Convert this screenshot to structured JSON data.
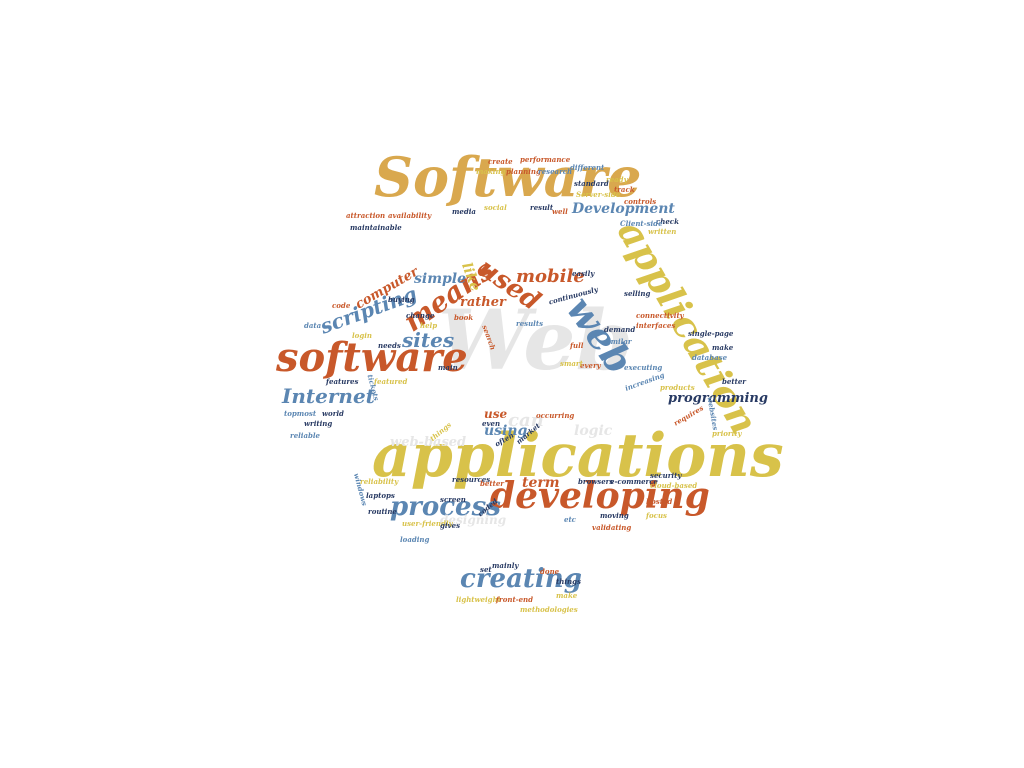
{
  "colors": {
    "orange": "#c8582a",
    "gold": "#d9a84e",
    "yellow": "#d8c24a",
    "blue": "#5b86b2",
    "navy": "#283a63",
    "faint": "#e6e6e6"
  },
  "words": [
    {
      "text": "Web",
      "color": "faint"
    },
    {
      "text": "applications",
      "color": "yellow"
    },
    {
      "text": "Software",
      "color": "gold"
    },
    {
      "text": "software",
      "color": "orange"
    },
    {
      "text": "developing",
      "color": "orange"
    },
    {
      "text": "application",
      "color": "yellow"
    },
    {
      "text": "web",
      "color": "blue"
    },
    {
      "text": "creating",
      "color": "blue"
    },
    {
      "text": "process",
      "color": "blue"
    },
    {
      "text": "used",
      "color": "orange"
    },
    {
      "text": "means",
      "color": "orange"
    },
    {
      "text": "Internet",
      "color": "blue"
    },
    {
      "text": "sites",
      "color": "blue"
    },
    {
      "text": "scripting",
      "color": "blue"
    },
    {
      "text": "mobile",
      "color": "orange"
    },
    {
      "text": "programming",
      "color": "navy"
    },
    {
      "text": "Development",
      "color": "blue"
    },
    {
      "text": "computer",
      "color": "orange"
    },
    {
      "text": "simple",
      "color": "blue"
    },
    {
      "text": "like",
      "color": "yellow"
    },
    {
      "text": "rather",
      "color": "orange"
    },
    {
      "text": "term",
      "color": "orange"
    },
    {
      "text": "using",
      "color": "blue"
    },
    {
      "text": "use",
      "color": "orange"
    },
    {
      "text": "can",
      "color": "faint"
    },
    {
      "text": "logic",
      "color": "faint"
    },
    {
      "text": "web-based",
      "color": "faint"
    },
    {
      "text": "designing",
      "color": "faint"
    },
    {
      "text": "create",
      "color": "orange"
    },
    {
      "text": "performance",
      "color": "orange"
    },
    {
      "text": "making",
      "color": "yellow"
    },
    {
      "text": "planning",
      "color": "orange"
    },
    {
      "text": "research",
      "color": "blue"
    },
    {
      "text": "different",
      "color": "blue"
    },
    {
      "text": "ready",
      "color": "yellow"
    },
    {
      "text": "standard",
      "color": "navy"
    },
    {
      "text": "track",
      "color": "orange"
    },
    {
      "text": "Server-side",
      "color": "yellow"
    },
    {
      "text": "controls",
      "color": "orange"
    },
    {
      "text": "social",
      "color": "yellow"
    },
    {
      "text": "result",
      "color": "navy"
    },
    {
      "text": "well",
      "color": "orange"
    },
    {
      "text": "media",
      "color": "navy"
    },
    {
      "text": "attraction",
      "color": "orange"
    },
    {
      "text": "availability",
      "color": "orange"
    },
    {
      "text": "maintainable",
      "color": "navy"
    },
    {
      "text": "check",
      "color": "navy"
    },
    {
      "text": "Client-side",
      "color": "blue"
    },
    {
      "text": "written",
      "color": "yellow"
    },
    {
      "text": "easily",
      "color": "navy"
    },
    {
      "text": "continuously",
      "color": "navy"
    },
    {
      "text": "selling",
      "color": "navy"
    },
    {
      "text": "connectivity",
      "color": "orange"
    },
    {
      "text": "interfaces",
      "color": "orange"
    },
    {
      "text": "single-page",
      "color": "navy"
    },
    {
      "text": "make",
      "color": "navy"
    },
    {
      "text": "database",
      "color": "blue"
    },
    {
      "text": "demand",
      "color": "navy"
    },
    {
      "text": "similar",
      "color": "blue"
    },
    {
      "text": "executing",
      "color": "blue"
    },
    {
      "text": "increasing",
      "color": "blue"
    },
    {
      "text": "products",
      "color": "yellow"
    },
    {
      "text": "better",
      "color": "navy"
    },
    {
      "text": "priority",
      "color": "yellow"
    },
    {
      "text": "websites",
      "color": "blue"
    },
    {
      "text": "requires",
      "color": "orange"
    },
    {
      "text": "every",
      "color": "orange"
    },
    {
      "text": "smart",
      "color": "yellow"
    },
    {
      "text": "full",
      "color": "orange"
    },
    {
      "text": "results",
      "color": "blue"
    },
    {
      "text": "book",
      "color": "orange"
    },
    {
      "text": "search",
      "color": "orange"
    },
    {
      "text": "help",
      "color": "yellow"
    },
    {
      "text": "change",
      "color": "navy"
    },
    {
      "text": "code",
      "color": "orange"
    },
    {
      "text": "buying",
      "color": "navy"
    },
    {
      "text": "login",
      "color": "yellow"
    },
    {
      "text": "data",
      "color": "blue"
    },
    {
      "text": "needs",
      "color": "navy"
    },
    {
      "text": "main",
      "color": "navy"
    },
    {
      "text": "features",
      "color": "navy"
    },
    {
      "text": "featured",
      "color": "yellow"
    },
    {
      "text": "tickets",
      "color": "blue"
    },
    {
      "text": "topmost",
      "color": "blue"
    },
    {
      "text": "world",
      "color": "navy"
    },
    {
      "text": "writing",
      "color": "navy"
    },
    {
      "text": "reliable",
      "color": "blue"
    },
    {
      "text": "occurring",
      "color": "orange"
    },
    {
      "text": "even",
      "color": "navy"
    },
    {
      "text": "often",
      "color": "navy"
    },
    {
      "text": "market",
      "color": "navy"
    },
    {
      "text": "things",
      "color": "yellow"
    },
    {
      "text": "resources",
      "color": "navy"
    },
    {
      "text": "better",
      "color": "orange"
    },
    {
      "text": "browsers",
      "color": "navy"
    },
    {
      "text": "e-commerce",
      "color": "navy"
    },
    {
      "text": "security",
      "color": "navy"
    },
    {
      "text": "hosted",
      "color": "orange"
    },
    {
      "text": "cloud-based",
      "color": "yellow"
    },
    {
      "text": "reliability",
      "color": "yellow"
    },
    {
      "text": "laptops",
      "color": "navy"
    },
    {
      "text": "windows",
      "color": "blue"
    },
    {
      "text": "user-friendly",
      "color": "yellow"
    },
    {
      "text": "screen",
      "color": "navy"
    },
    {
      "text": "coded",
      "color": "navy"
    },
    {
      "text": "routine",
      "color": "navy"
    },
    {
      "text": "gives",
      "color": "navy"
    },
    {
      "text": "loading",
      "color": "blue"
    },
    {
      "text": "etc",
      "color": "blue"
    },
    {
      "text": "validating",
      "color": "orange"
    },
    {
      "text": "moving",
      "color": "navy"
    },
    {
      "text": "focus",
      "color": "yellow"
    },
    {
      "text": "set",
      "color": "navy"
    },
    {
      "text": "mainly",
      "color": "navy"
    },
    {
      "text": "done",
      "color": "orange"
    },
    {
      "text": "things",
      "color": "navy"
    },
    {
      "text": "lightweight",
      "color": "yellow"
    },
    {
      "text": "front-end",
      "color": "orange"
    },
    {
      "text": "make",
      "color": "yellow"
    },
    {
      "text": "methodologies",
      "color": "yellow"
    }
  ]
}
